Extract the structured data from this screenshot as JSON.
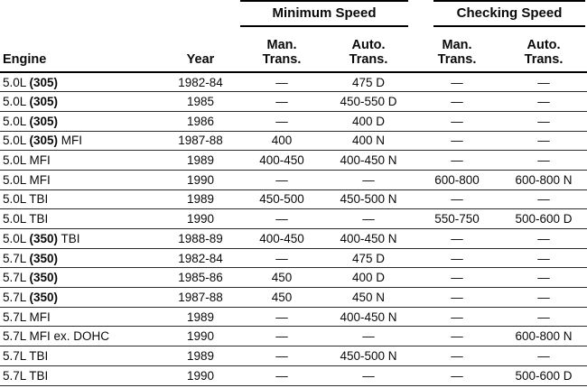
{
  "page": {
    "background": "#ffffff",
    "text_color": "#0a0a0a",
    "rule_color": "#000000"
  },
  "table": {
    "groups": [
      {
        "label": "Minimum Speed"
      },
      {
        "label": "Checking Speed"
      }
    ],
    "engine_header": "Engine",
    "year_header": "Year",
    "sub_headers": [
      {
        "line1": "Man.",
        "line2": "Trans."
      },
      {
        "line1": "Auto.",
        "line2": "Trans."
      },
      {
        "line1": "Man.",
        "line2": "Trans."
      },
      {
        "line1": "Auto.",
        "line2": "Trans."
      }
    ],
    "empty_cell_symbol": "—",
    "rows": [
      {
        "engine": "5.0L (305)",
        "year": "1982-84",
        "min_man_trans": "—",
        "min_auto_trans": "475 D",
        "chk_man_trans": "—",
        "chk_auto_trans": "—"
      },
      {
        "engine": "5.0L (305)",
        "year": "1985",
        "min_man_trans": "—",
        "min_auto_trans": "450-550 D",
        "chk_man_trans": "—",
        "chk_auto_trans": "—"
      },
      {
        "engine": "5.0L (305)",
        "year": "1986",
        "min_man_trans": "—",
        "min_auto_trans": "400 D",
        "chk_man_trans": "—",
        "chk_auto_trans": "—"
      },
      {
        "engine": "5.0L (305) MFI",
        "year": "1987-88",
        "min_man_trans": "400",
        "min_auto_trans": "400 N",
        "chk_man_trans": "—",
        "chk_auto_trans": "—"
      },
      {
        "engine": "5.0L MFI",
        "year": "1989",
        "min_man_trans": "400-450",
        "min_auto_trans": "400-450 N",
        "chk_man_trans": "—",
        "chk_auto_trans": "—"
      },
      {
        "engine": "5.0L MFI",
        "year": "1990",
        "min_man_trans": "—",
        "min_auto_trans": "—",
        "chk_man_trans": "600-800",
        "chk_auto_trans": "600-800 N"
      },
      {
        "engine": "5.0L TBI",
        "year": "1989",
        "min_man_trans": "450-500",
        "min_auto_trans": "450-500 N",
        "chk_man_trans": "—",
        "chk_auto_trans": "—"
      },
      {
        "engine": "5.0L TBI",
        "year": "1990",
        "min_man_trans": "—",
        "min_auto_trans": "—",
        "chk_man_trans": "550-750",
        "chk_auto_trans": "500-600 D"
      },
      {
        "engine": "5.0L (350) TBI",
        "year": "1988-89",
        "min_man_trans": "400-450",
        "min_auto_trans": "400-450 N",
        "chk_man_trans": "—",
        "chk_auto_trans": "—"
      },
      {
        "engine": "5.7L (350)",
        "year": "1982-84",
        "min_man_trans": "—",
        "min_auto_trans": "475 D",
        "chk_man_trans": "—",
        "chk_auto_trans": "—"
      },
      {
        "engine": "5.7L (350)",
        "year": "1985-86",
        "min_man_trans": "450",
        "min_auto_trans": "400 D",
        "chk_man_trans": "—",
        "chk_auto_trans": "—"
      },
      {
        "engine": "5.7L (350)",
        "year": "1987-88",
        "min_man_trans": "450",
        "min_auto_trans": "450 N",
        "chk_man_trans": "—",
        "chk_auto_trans": "—"
      },
      {
        "engine": "5.7L MFI",
        "year": "1989",
        "min_man_trans": "—",
        "min_auto_trans": "400-450 N",
        "chk_man_trans": "—",
        "chk_auto_trans": "—"
      },
      {
        "engine": "5.7L MFI ex. DOHC",
        "year": "1990",
        "min_man_trans": "—",
        "min_auto_trans": "—",
        "chk_man_trans": "—",
        "chk_auto_trans": "600-800 N"
      },
      {
        "engine": "5.7L TBI",
        "year": "1989",
        "min_man_trans": "—",
        "min_auto_trans": "450-500 N",
        "chk_man_trans": "—",
        "chk_auto_trans": "—"
      },
      {
        "engine": "5.7L TBI",
        "year": "1990",
        "min_man_trans": "—",
        "min_auto_trans": "—",
        "chk_man_trans": "—",
        "chk_auto_trans": "500-600 D"
      }
    ]
  }
}
